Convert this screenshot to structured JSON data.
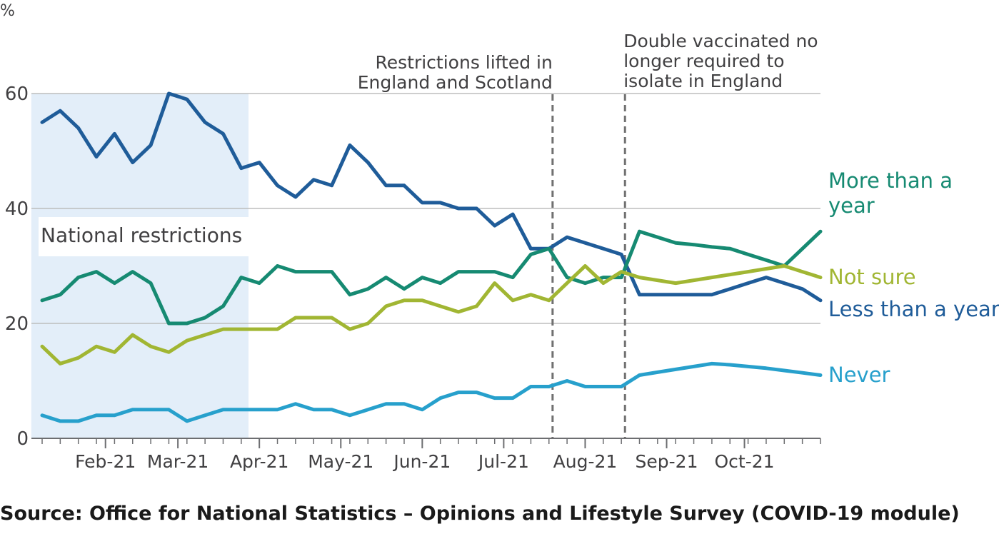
{
  "chart_data": {
    "type": "line",
    "unit_label": "%",
    "ylim": [
      0,
      60
    ],
    "yticks": [
      0,
      20,
      40,
      60
    ],
    "xlim": [
      0,
      43
    ],
    "x_ticks": [
      {
        "label": "Feb-21",
        "x": 3.5
      },
      {
        "label": "Mar-21",
        "x": 7.5
      },
      {
        "label": "Apr-21",
        "x": 12
      },
      {
        "label": "May-21",
        "x": 16.5
      },
      {
        "label": "Jun-21",
        "x": 21
      },
      {
        "label": "Jul-21",
        "x": 25.5
      },
      {
        "label": "Aug-21",
        "x": 30
      },
      {
        "label": "Sep-21",
        "x": 34.5
      },
      {
        "label": "Oct-21",
        "x": 38.8
      }
    ],
    "shaded_region": {
      "label": "National restrictions",
      "x_start": -0.6,
      "x_end": 11.4
    },
    "vlines": [
      {
        "x": 28.2,
        "label_lines": [
          "Restrictions lifted in",
          "England and Scotland"
        ]
      },
      {
        "x": 32.2,
        "label_lines": [
          "Double vaccinated no",
          "longer required to",
          "isolate in England"
        ]
      }
    ],
    "series": [
      {
        "name": "Less than a year",
        "color": "#1f5c99",
        "x": [
          0,
          1,
          2,
          3,
          4,
          5,
          6,
          7,
          8,
          9,
          10,
          11,
          12,
          13,
          14,
          15,
          16,
          17,
          18,
          19,
          20,
          21,
          22,
          23,
          24,
          25,
          26,
          27,
          28,
          29,
          30,
          31,
          32,
          33,
          34,
          35,
          36,
          37,
          38,
          39,
          40,
          41,
          42,
          43
        ],
        "values": [
          55,
          57,
          54,
          49,
          53,
          48,
          51,
          60,
          59,
          55,
          53,
          47,
          48,
          44,
          42,
          45,
          44,
          51,
          48,
          44,
          44,
          41,
          41,
          40,
          40,
          37,
          39,
          33,
          33,
          35,
          34,
          33,
          32,
          25,
          25,
          25,
          25,
          25,
          26,
          27,
          28,
          27,
          26,
          24
        ]
      },
      {
        "name": "More than a year",
        "color": "#168a72",
        "x": [
          0,
          1,
          2,
          3,
          4,
          5,
          6,
          7,
          8,
          9,
          10,
          11,
          12,
          13,
          14,
          15,
          16,
          17,
          18,
          19,
          20,
          21,
          22,
          23,
          24,
          25,
          26,
          27,
          28,
          29,
          30,
          31,
          32,
          33,
          34,
          35,
          36,
          37,
          38,
          39,
          40,
          41,
          42,
          43
        ],
        "values": [
          24,
          25,
          28,
          29,
          27,
          29,
          27,
          20,
          20,
          21,
          23,
          28,
          27,
          30,
          29,
          29,
          29,
          25,
          26,
          28,
          26,
          28,
          27,
          29,
          29,
          29,
          28,
          32,
          33,
          28,
          27,
          28,
          28,
          36,
          35,
          34,
          33.7,
          33.3,
          33,
          32,
          31,
          30,
          33,
          36
        ]
      },
      {
        "name": "Not sure",
        "color": "#a1b633",
        "x": [
          0,
          1,
          2,
          3,
          4,
          5,
          6,
          7,
          8,
          9,
          10,
          11,
          12,
          13,
          14,
          15,
          16,
          17,
          18,
          19,
          20,
          21,
          22,
          23,
          24,
          25,
          26,
          27,
          28,
          29,
          30,
          31,
          32,
          33,
          34,
          35,
          36,
          37,
          38,
          39,
          40,
          41,
          42,
          43
        ],
        "values": [
          16,
          13,
          14,
          16,
          15,
          18,
          16,
          15,
          17,
          18,
          19,
          19,
          19,
          19,
          21,
          21,
          21,
          19,
          20,
          23,
          24,
          24,
          23,
          22,
          23,
          27,
          24,
          25,
          24,
          27,
          30,
          27,
          29,
          28,
          27.5,
          27,
          27.5,
          28,
          28.5,
          29,
          29.5,
          30,
          29,
          28
        ]
      },
      {
        "name": "Never",
        "color": "#27a0cc",
        "x": [
          0,
          1,
          2,
          3,
          4,
          5,
          6,
          7,
          8,
          9,
          10,
          11,
          12,
          13,
          14,
          15,
          16,
          17,
          18,
          19,
          20,
          21,
          22,
          23,
          24,
          25,
          26,
          27,
          28,
          29,
          30,
          31,
          32,
          33,
          34,
          35,
          36,
          37,
          38,
          39,
          40,
          41,
          42,
          43
        ],
        "values": [
          4,
          3,
          3,
          4,
          4,
          5,
          5,
          5,
          3,
          4,
          5,
          5,
          5,
          5,
          6,
          5,
          5,
          4,
          5,
          6,
          6,
          5,
          7,
          8,
          8,
          7,
          7,
          9,
          9,
          10,
          9,
          9,
          9,
          11,
          11.5,
          12,
          12.5,
          13,
          12.8,
          12.5,
          12.2,
          11.8,
          11.4,
          11
        ]
      }
    ],
    "end_labels": [
      {
        "series": "More than a year",
        "lines": [
          "More than a",
          "year"
        ]
      },
      {
        "series": "Not sure",
        "lines": [
          "Not sure"
        ]
      },
      {
        "series": "Less than a year",
        "lines": [
          "Less than a year"
        ]
      },
      {
        "series": "Never",
        "lines": [
          "Never"
        ]
      }
    ]
  },
  "source_text": "Source: Office for National Statistics – Opinions and Lifestyle Survey (COVID-19 module)"
}
